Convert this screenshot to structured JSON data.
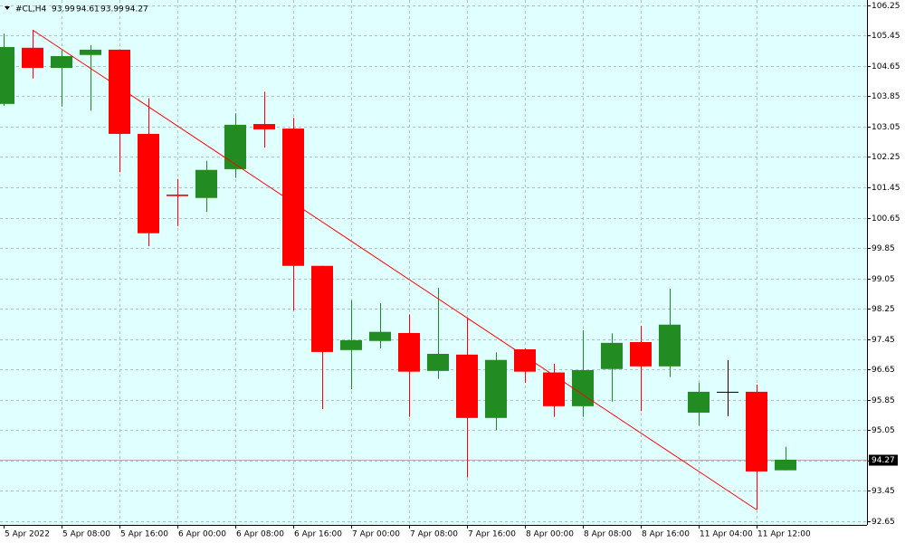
{
  "chart_data": {
    "type": "candlestick",
    "title": "#CL,H4",
    "categories": [
      "5 Apr 2022",
      null,
      "5 Apr 08:00",
      null,
      "5 Apr 16:00",
      null,
      "6 Apr 00:00",
      null,
      "6 Apr 08:00",
      null,
      "6 Apr 16:00",
      null,
      "7 Apr 00:00",
      null,
      "7 Apr 08:00",
      null,
      "7 Apr 16:00",
      null,
      "8 Apr 00:00",
      null,
      "8 Apr 08:00",
      null,
      "8 Apr 16:00",
      null,
      "11 Apr 04:00",
      null,
      "11 Apr 12:00",
      null
    ],
    "open": [
      103.65,
      105.13,
      104.6,
      104.94,
      105.08,
      102.86,
      101.26,
      101.17,
      101.93,
      103.12,
      103.0,
      99.38,
      97.16,
      97.4,
      97.61,
      96.61,
      97.04,
      95.37,
      97.18,
      96.57,
      95.68,
      96.66,
      97.37,
      96.73,
      95.51,
      96.06,
      96.06,
      93.99
    ],
    "high": [
      105.5,
      105.6,
      105.06,
      105.2,
      105.08,
      103.8,
      101.67,
      102.15,
      103.4,
      103.97,
      103.28,
      99.38,
      98.47,
      98.4,
      98.1,
      98.8,
      98.0,
      97.1,
      97.2,
      96.8,
      97.68,
      97.6,
      97.8,
      98.78,
      96.3,
      96.9,
      96.25,
      94.61
    ],
    "low": [
      103.6,
      104.32,
      103.58,
      103.47,
      101.85,
      99.9,
      100.43,
      100.8,
      101.7,
      102.5,
      98.2,
      95.6,
      96.13,
      97.2,
      95.4,
      96.4,
      93.8,
      95.05,
      96.3,
      95.4,
      95.4,
      95.8,
      95.55,
      96.45,
      95.17,
      95.42,
      92.95,
      93.99
    ],
    "close": [
      105.15,
      104.6,
      104.91,
      105.08,
      102.86,
      100.24,
      101.22,
      101.91,
      103.1,
      102.98,
      99.38,
      97.11,
      97.42,
      97.64,
      96.59,
      97.06,
      95.37,
      96.9,
      96.59,
      95.68,
      96.63,
      97.35,
      96.73,
      97.83,
      96.06,
      96.06,
      93.96,
      94.27
    ],
    "up_color": "#228b22",
    "down_color": "#ff0000",
    "flat_color": "#000000",
    "trendline_color": "#ff0000",
    "ylim": [
      92.55,
      106.39
    ],
    "yticks": [
      92.65,
      93.45,
      94.25,
      95.05,
      95.85,
      96.65,
      97.45,
      98.25,
      99.05,
      99.85,
      100.65,
      101.45,
      102.25,
      103.05,
      103.85,
      104.65,
      105.45,
      106.25
    ],
    "grid": true
  }
}
